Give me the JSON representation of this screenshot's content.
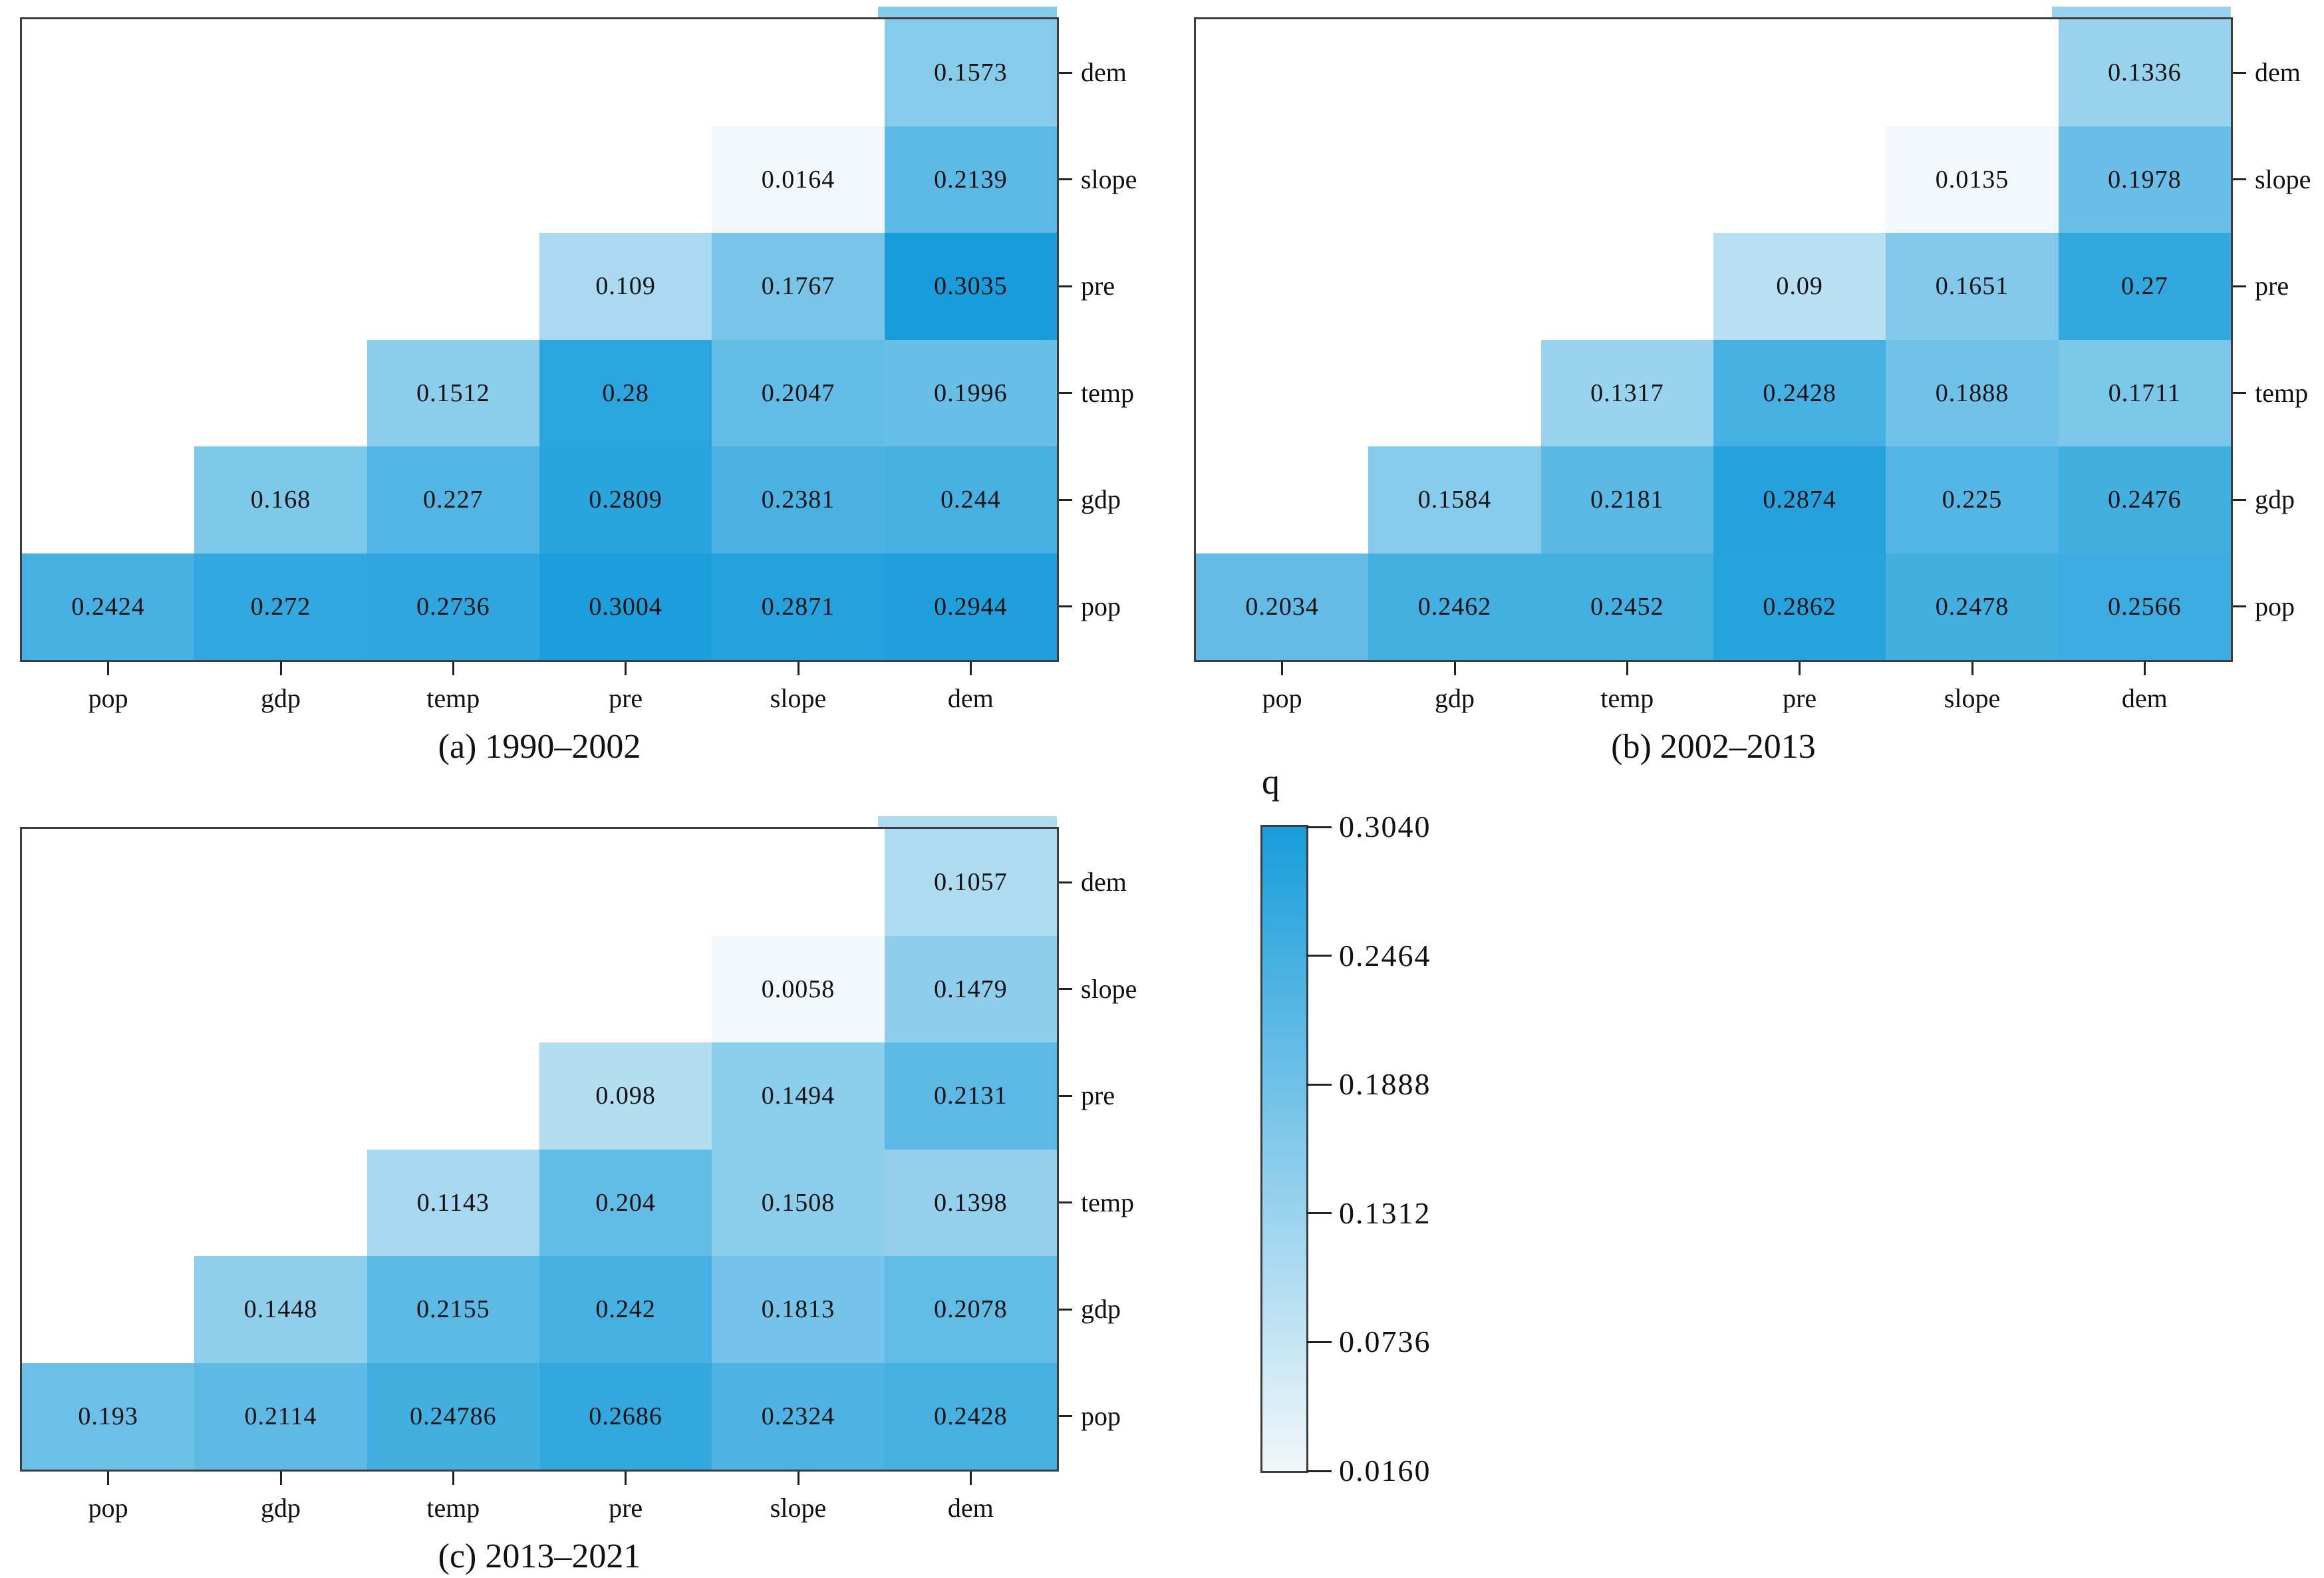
{
  "figure": {
    "background": "#ffffff",
    "value_label": "q"
  },
  "palette": {
    "low_color": "#f1f7fa",
    "high_color": "#189ddb",
    "q_min": 0.016,
    "q_max": 0.304,
    "text_color": "#111111",
    "spine_color": "#3d3d3d",
    "tick_color": "#222222"
  },
  "colorbar": {
    "title": "q",
    "tick_labels": [
      "0.3040",
      "0.2464",
      "0.1888",
      "0.1312",
      "0.0736",
      "0.0160"
    ]
  },
  "chart_data": [
    {
      "type": "heatmap",
      "caption": "(a) 1990–2002",
      "x_categories": [
        "pop",
        "gdp",
        "temp",
        "pre",
        "slope",
        "dem"
      ],
      "y_categories_top_to_bottom": [
        "dem",
        "slope",
        "pre",
        "temp",
        "gdp",
        "pop"
      ],
      "value_label": "q",
      "rows_top_to_bottom": [
        [
          null,
          null,
          null,
          null,
          null,
          0.1573
        ],
        [
          null,
          null,
          null,
          null,
          0.0164,
          0.2139
        ],
        [
          null,
          null,
          null,
          0.109,
          0.1767,
          0.3035
        ],
        [
          null,
          null,
          0.1512,
          0.28,
          0.2047,
          0.1996
        ],
        [
          null,
          0.168,
          0.227,
          0.2809,
          0.2381,
          0.244
        ],
        [
          0.2424,
          0.272,
          0.2736,
          0.3004,
          0.2871,
          0.2944
        ]
      ]
    },
    {
      "type": "heatmap",
      "caption": "(b) 2002–2013",
      "x_categories": [
        "pop",
        "gdp",
        "temp",
        "pre",
        "slope",
        "dem"
      ],
      "y_categories_top_to_bottom": [
        "dem",
        "slope",
        "pre",
        "temp",
        "gdp",
        "pop"
      ],
      "value_label": "q",
      "rows_top_to_bottom": [
        [
          null,
          null,
          null,
          null,
          null,
          0.1336
        ],
        [
          null,
          null,
          null,
          null,
          0.0135,
          0.1978
        ],
        [
          null,
          null,
          null,
          0.09,
          0.1651,
          0.27
        ],
        [
          null,
          null,
          0.1317,
          0.2428,
          0.1888,
          0.1711
        ],
        [
          null,
          0.1584,
          0.2181,
          0.2874,
          0.225,
          0.2476
        ],
        [
          0.2034,
          0.2462,
          0.2452,
          0.2862,
          0.2478,
          0.2566
        ]
      ]
    },
    {
      "type": "heatmap",
      "caption": "(c) 2013–2021",
      "x_categories": [
        "pop",
        "gdp",
        "temp",
        "pre",
        "slope",
        "dem"
      ],
      "y_categories_top_to_bottom": [
        "dem",
        "slope",
        "pre",
        "temp",
        "gdp",
        "pop"
      ],
      "value_label": "q",
      "rows_top_to_bottom": [
        [
          null,
          null,
          null,
          null,
          null,
          0.1057
        ],
        [
          null,
          null,
          null,
          null,
          0.0058,
          0.1479
        ],
        [
          null,
          null,
          null,
          0.098,
          0.1494,
          0.2131
        ],
        [
          null,
          null,
          0.1143,
          0.204,
          0.1508,
          0.1398
        ],
        [
          null,
          0.1448,
          0.2155,
          0.242,
          0.1813,
          0.2078
        ],
        [
          0.193,
          0.2114,
          0.24786,
          0.2686,
          0.2324,
          0.2428
        ]
      ]
    }
  ]
}
